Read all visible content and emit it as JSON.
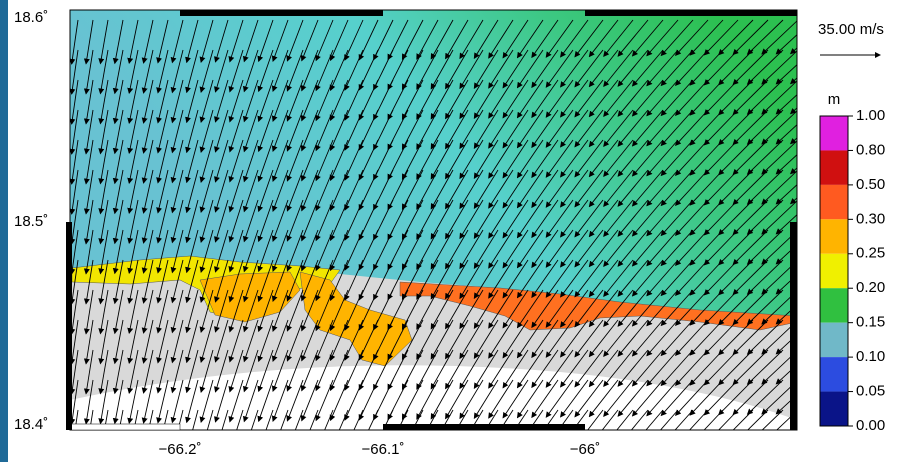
{
  "map": {
    "x_tick_labels": [
      "−66.2˚",
      "−66.1˚",
      "−66˚"
    ],
    "y_tick_labels": [
      "18.6˚",
      "18.5˚",
      "18.4˚"
    ],
    "vector_scale": "35.00 m/s",
    "colorbar": {
      "unit": "m",
      "labels": [
        "1.00",
        "0.80",
        "0.50",
        "0.30",
        "0.25",
        "0.20",
        "0.15",
        "0.10",
        "0.05",
        "0.00"
      ],
      "colors": [
        "#e020e0",
        "#d01010",
        "#ff5a20",
        "#ffb400",
        "#f0f000",
        "#30c040",
        "#70b8c8",
        "#2c4ce0",
        "#0a1488"
      ]
    }
  }
}
